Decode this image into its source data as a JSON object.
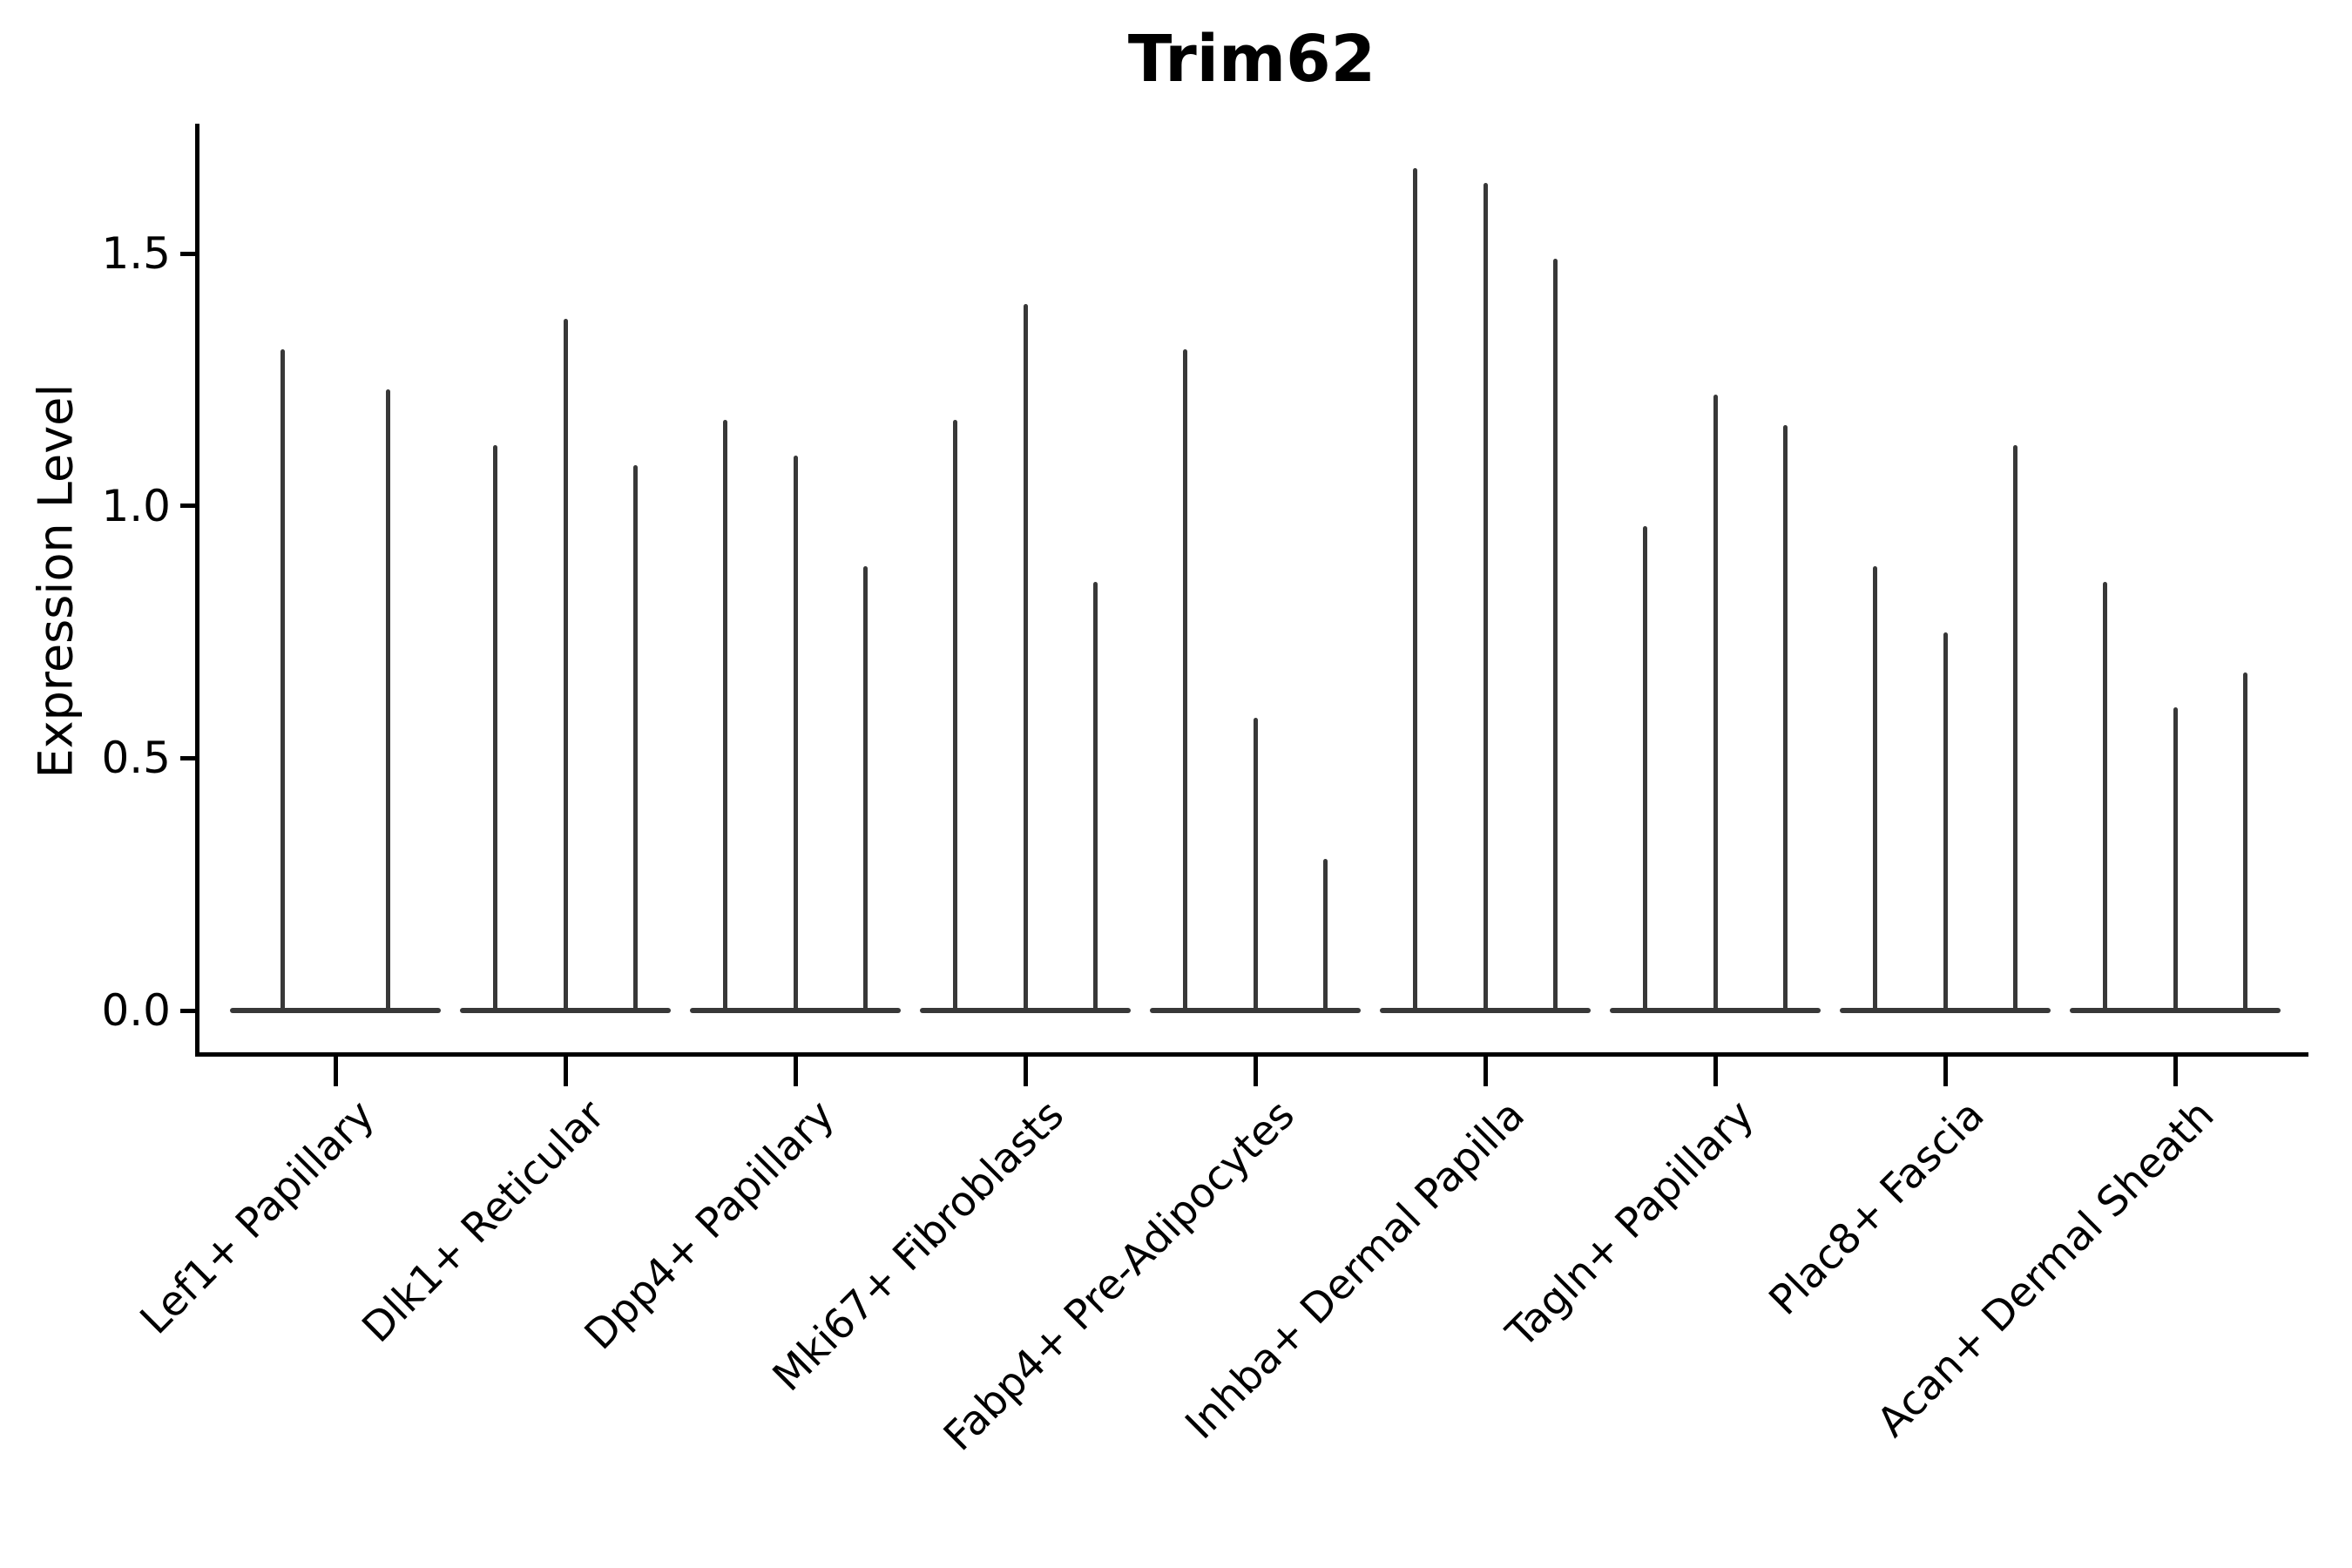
{
  "title": "Trim62",
  "y_axis": {
    "label": "Expression Level",
    "ticks": [
      {
        "label": "0.0",
        "value": 0.0
      },
      {
        "label": "0.5",
        "value": 0.5
      },
      {
        "label": "1.0",
        "value": 1.0
      },
      {
        "label": "1.5",
        "value": 1.5
      }
    ]
  },
  "chart_data": {
    "type": "violin",
    "title": "Trim62",
    "xlabel": "",
    "ylabel": "Expression Level",
    "ylim": [
      0,
      1.76
    ],
    "grid": false,
    "legend": false,
    "description": "Single-cell expression violin plot; each violin collapses to a flat bar at 0 with a thin spike up to its maximum expression value",
    "colors": {
      "violin": "#383838",
      "axis": "#000000",
      "text": "#000000"
    },
    "categories": [
      "Lef1+ Papillary",
      "Dlk1+ Reticular",
      "Dpp4+ Papillary",
      "Mki67+ Fibroblasts",
      "Fabp4+ Pre-Adipocytes",
      "Inhba+ Dermal Papilla",
      "Tagln+ Papillary",
      "Plac8+ Fascia",
      "Acan+ Dermal Sheath"
    ],
    "groups": [
      {
        "label": "Lef1+ Papillary",
        "violin_max": [
          1.31,
          1.23
        ]
      },
      {
        "label": "Dlk1+ Reticular",
        "violin_max": [
          1.12,
          1.37,
          1.08
        ]
      },
      {
        "label": "Dpp4+ Papillary",
        "violin_max": [
          1.17,
          1.1,
          0.88
        ]
      },
      {
        "label": "Mki67+ Fibroblasts",
        "violin_max": [
          1.17,
          1.4,
          0.85
        ]
      },
      {
        "label": "Fabp4+ Pre-Adipocytes",
        "violin_max": [
          1.31,
          0.58,
          0.3
        ]
      },
      {
        "label": "Inhba+ Dermal Papilla",
        "violin_max": [
          1.67,
          1.64,
          1.49
        ]
      },
      {
        "label": "Tagln+ Papillary",
        "violin_max": [
          0.96,
          1.22,
          1.16
        ]
      },
      {
        "label": "Plac8+ Fascia",
        "violin_max": [
          0.88,
          0.75,
          1.12
        ]
      },
      {
        "label": "Acan+ Dermal Sheath",
        "violin_max": [
          0.85,
          0.6,
          0.67
        ]
      }
    ]
  }
}
